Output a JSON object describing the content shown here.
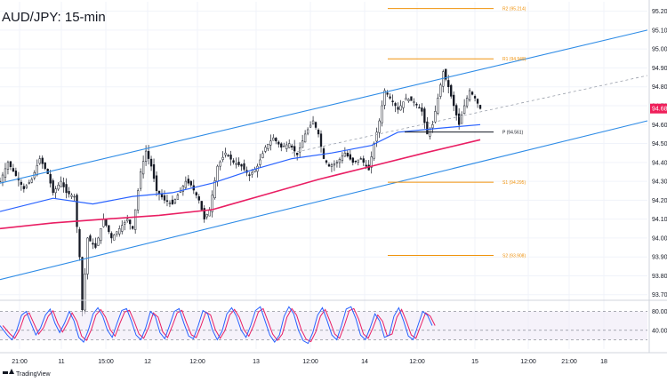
{
  "chart_title": "AUD/JPY: 15-min",
  "brand": "TradingView",
  "colors": {
    "channel": "#2f8ce6",
    "ma_blue": "#2962ff",
    "ma_pink": "#e91e63",
    "pivot": "#f0920b",
    "pivot_p": "#131722",
    "price_badge": "#ef1f5a",
    "candle": "#131722",
    "stoch_k": "#2962ff",
    "stoch_d": "#e91e63",
    "stoch_band": "#ede7f6"
  },
  "chart_data": {
    "type": "candlestick",
    "title": "AUD/JPY: 15-min",
    "ylim": [
      93.68,
      95.25
    ],
    "yticks": [
      "95.200",
      "95.100",
      "95.000",
      "94.900",
      "94.800",
      "94.700",
      "94.600",
      "94.500",
      "94.400",
      "94.300",
      "94.200",
      "94.100",
      "94.000",
      "93.900",
      "93.800",
      "93.700"
    ],
    "y_values": [
      95.2,
      95.1,
      95.0,
      94.9,
      94.8,
      94.7,
      94.6,
      94.5,
      94.4,
      94.3,
      94.2,
      94.1,
      94.0,
      93.9,
      93.8,
      93.7
    ],
    "current_price": "94.685",
    "current_price_value": 94.685,
    "xticks": [
      "21:00",
      "11",
      "15:00",
      "12",
      "12:00",
      "13",
      "12:00",
      "14",
      "12:00",
      "15",
      "12:00",
      "21:00",
      "18"
    ],
    "pivots": [
      {
        "label": "R2 (95.214)",
        "value": 95.214
      },
      {
        "label": "R1 (94.948)",
        "value": 94.948
      },
      {
        "label": "P (94.561)",
        "value": 94.561
      },
      {
        "label": "S1 (94.295)",
        "value": 94.295
      },
      {
        "label": "S2 (93.908)",
        "value": 93.908
      }
    ],
    "close_path": [
      [
        0,
        94.3
      ],
      [
        3,
        94.4
      ],
      [
        6,
        94.33
      ],
      [
        9,
        94.26
      ],
      [
        12,
        94.31
      ],
      [
        15,
        94.42
      ],
      [
        18,
        94.34
      ],
      [
        20,
        94.24
      ],
      [
        23,
        94.3
      ],
      [
        25,
        94.24
      ],
      [
        28,
        94.22
      ],
      [
        30,
        93.9
      ],
      [
        31,
        93.62
      ],
      [
        33,
        94.0
      ],
      [
        36,
        93.95
      ],
      [
        39,
        94.1
      ],
      [
        42,
        94.0
      ],
      [
        45,
        94.05
      ],
      [
        48,
        94.1
      ],
      [
        50,
        94.05
      ],
      [
        53,
        94.35
      ],
      [
        55,
        94.46
      ],
      [
        57,
        94.38
      ],
      [
        59,
        94.25
      ],
      [
        62,
        94.2
      ],
      [
        65,
        94.18
      ],
      [
        68,
        94.25
      ],
      [
        70,
        94.3
      ],
      [
        72,
        94.28
      ],
      [
        75,
        94.2
      ],
      [
        77,
        94.1
      ],
      [
        79,
        94.15
      ],
      [
        82,
        94.38
      ],
      [
        85,
        94.45
      ],
      [
        88,
        94.4
      ],
      [
        91,
        94.38
      ],
      [
        94,
        94.33
      ],
      [
        97,
        94.38
      ],
      [
        100,
        94.48
      ],
      [
        103,
        94.53
      ],
      [
        106,
        94.48
      ],
      [
        109,
        94.5
      ],
      [
        112,
        94.44
      ],
      [
        115,
        94.55
      ],
      [
        118,
        94.62
      ],
      [
        120,
        94.55
      ],
      [
        122,
        94.42
      ],
      [
        124,
        94.38
      ],
      [
        127,
        94.4
      ],
      [
        130,
        94.45
      ],
      [
        133,
        94.4
      ],
      [
        136,
        94.42
      ],
      [
        139,
        94.36
      ],
      [
        141,
        94.5
      ],
      [
        143,
        94.62
      ],
      [
        145,
        94.78
      ],
      [
        147,
        94.74
      ],
      [
        150,
        94.68
      ],
      [
        153,
        94.74
      ],
      [
        156,
        94.72
      ],
      [
        159,
        94.67
      ],
      [
        161,
        94.55
      ],
      [
        163,
        94.6
      ],
      [
        165,
        94.74
      ],
      [
        167,
        94.88
      ],
      [
        169,
        94.8
      ],
      [
        171,
        94.7
      ],
      [
        173,
        94.6
      ],
      [
        175,
        94.7
      ],
      [
        177,
        94.78
      ],
      [
        179,
        94.74
      ],
      [
        181,
        94.685
      ]
    ],
    "channel_upper": [
      [
        0,
        94.29
      ],
      [
        244,
        95.1
      ]
    ],
    "channel_lower": [
      [
        0,
        93.78
      ],
      [
        244,
        94.62
      ]
    ],
    "channel_mid": [
      [
        110,
        94.45
      ],
      [
        244,
        94.86
      ]
    ],
    "ma_blue": [
      [
        0,
        94.14
      ],
      [
        20,
        94.21
      ],
      [
        35,
        94.18
      ],
      [
        50,
        94.22
      ],
      [
        65,
        94.24
      ],
      [
        80,
        94.29
      ],
      [
        95,
        94.36
      ],
      [
        110,
        94.42
      ],
      [
        125,
        94.45
      ],
      [
        140,
        94.49
      ],
      [
        150,
        94.56
      ],
      [
        165,
        94.58
      ],
      [
        181,
        94.6
      ]
    ],
    "ma_pink": [
      [
        0,
        94.05
      ],
      [
        20,
        94.08
      ],
      [
        40,
        94.1
      ],
      [
        60,
        94.12
      ],
      [
        80,
        94.15
      ],
      [
        100,
        94.23
      ],
      [
        120,
        94.31
      ],
      [
        140,
        94.38
      ],
      [
        160,
        94.45
      ],
      [
        181,
        94.52
      ]
    ],
    "stochastic": {
      "levels": [
        "80.00",
        "40.00"
      ],
      "level_values": [
        80,
        40
      ],
      "band": [
        20,
        80
      ],
      "k": [
        [
          0,
          50
        ],
        [
          3,
          30
        ],
        [
          5,
          20
        ],
        [
          7,
          40
        ],
        [
          9,
          72
        ],
        [
          11,
          80
        ],
        [
          13,
          55
        ],
        [
          15,
          30
        ],
        [
          17,
          45
        ],
        [
          19,
          72
        ],
        [
          21,
          85
        ],
        [
          23,
          55
        ],
        [
          25,
          35
        ],
        [
          27,
          55
        ],
        [
          29,
          80
        ],
        [
          31,
          60
        ],
        [
          33,
          25
        ],
        [
          35,
          15
        ],
        [
          37,
          40
        ],
        [
          39,
          75
        ],
        [
          41,
          88
        ],
        [
          43,
          70
        ],
        [
          45,
          40
        ],
        [
          47,
          25
        ],
        [
          49,
          55
        ],
        [
          51,
          82
        ],
        [
          53,
          86
        ],
        [
          55,
          60
        ],
        [
          57,
          30
        ],
        [
          59,
          20
        ],
        [
          61,
          45
        ],
        [
          63,
          80
        ],
        [
          65,
          70
        ],
        [
          67,
          35
        ],
        [
          69,
          22
        ],
        [
          71,
          50
        ],
        [
          73,
          80
        ],
        [
          75,
          86
        ],
        [
          77,
          55
        ],
        [
          79,
          28
        ],
        [
          81,
          22
        ],
        [
          83,
          50
        ],
        [
          85,
          82
        ],
        [
          87,
          75
        ],
        [
          89,
          40
        ],
        [
          91,
          20
        ],
        [
          93,
          38
        ],
        [
          95,
          75
        ],
        [
          97,
          88
        ],
        [
          99,
          70
        ],
        [
          101,
          40
        ],
        [
          103,
          25
        ],
        [
          105,
          50
        ],
        [
          107,
          82
        ],
        [
          109,
          90
        ],
        [
          111,
          60
        ],
        [
          113,
          30
        ],
        [
          115,
          15
        ],
        [
          117,
          30
        ],
        [
          119,
          70
        ],
        [
          121,
          90
        ],
        [
          123,
          75
        ],
        [
          125,
          40
        ],
        [
          127,
          18
        ],
        [
          129,
          12
        ],
        [
          131,
          35
        ],
        [
          133,
          72
        ],
        [
          135,
          88
        ],
        [
          137,
          60
        ],
        [
          139,
          30
        ],
        [
          141,
          20
        ],
        [
          143,
          50
        ],
        [
          145,
          85
        ],
        [
          147,
          90
        ],
        [
          149,
          65
        ],
        [
          151,
          30
        ],
        [
          153,
          20
        ],
        [
          155,
          45
        ],
        [
          157,
          75
        ],
        [
          159,
          60
        ],
        [
          161,
          25
        ],
        [
          163,
          30
        ],
        [
          165,
          70
        ],
        [
          167,
          88
        ],
        [
          169,
          60
        ],
        [
          171,
          28
        ],
        [
          173,
          20
        ],
        [
          175,
          50
        ],
        [
          177,
          80
        ],
        [
          179,
          72
        ],
        [
          181,
          50
        ]
      ]
    }
  }
}
